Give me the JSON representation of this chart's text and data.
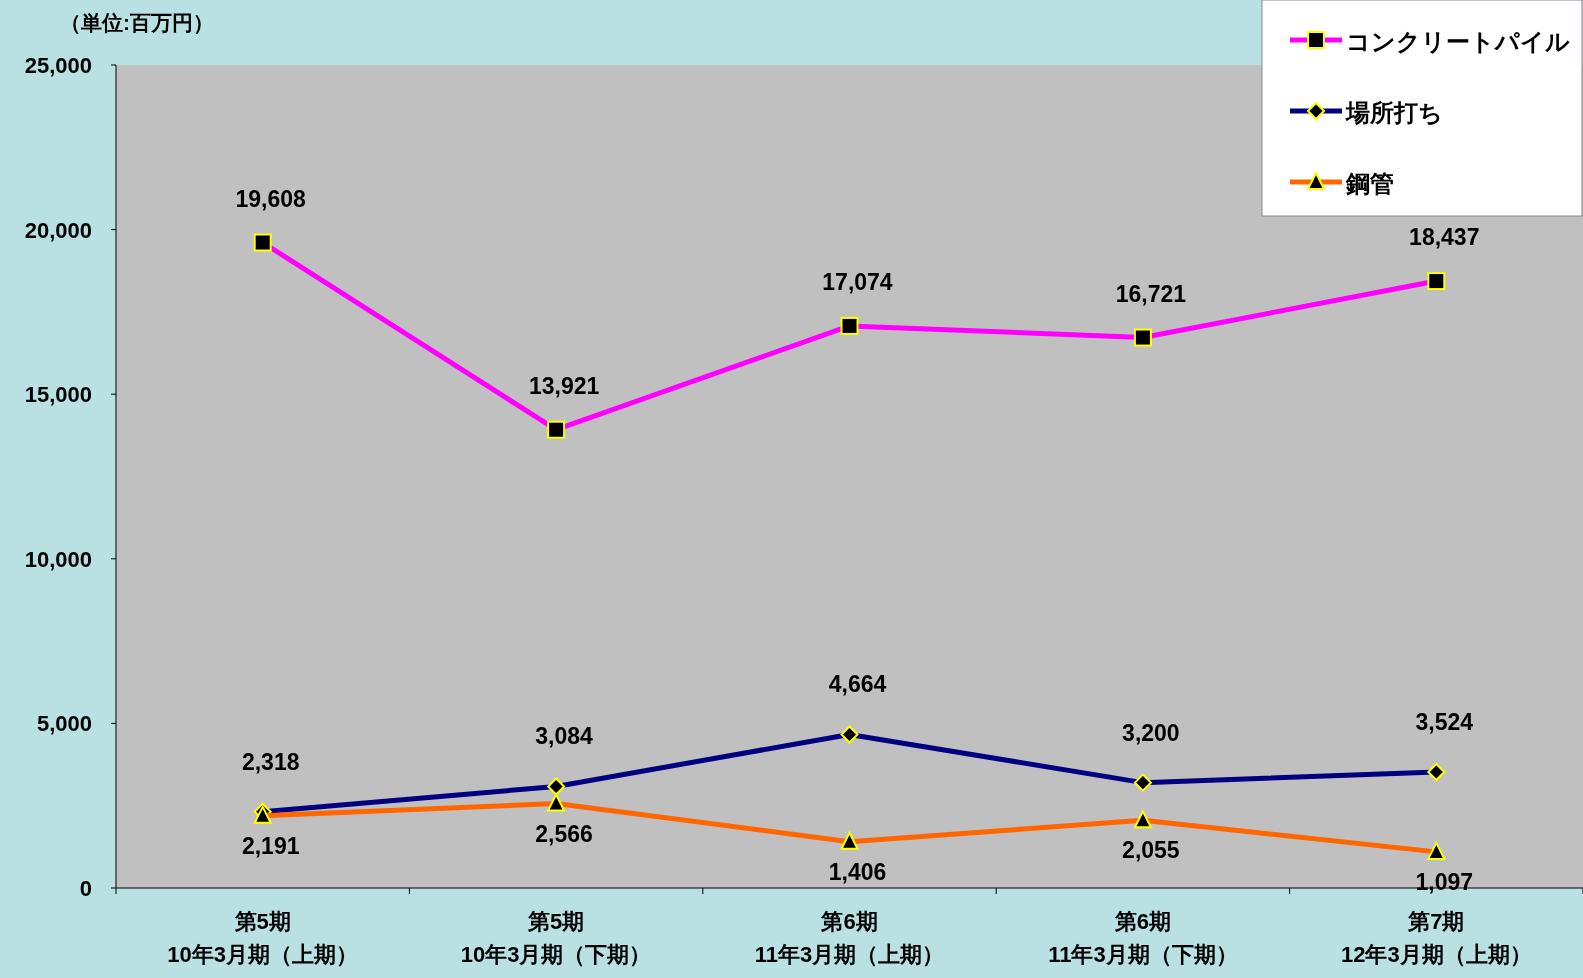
{
  "chart_data": {
    "type": "line",
    "categories": [
      "第5期\n10年3月期（上期）",
      "第5期\n10年3月期（下期）",
      "第6期\n11年3月期（上期）",
      "第6期\n11年3月期（下期）",
      "第7期\n12年3月期（上期）"
    ],
    "ylim": [
      0,
      25000
    ],
    "yticks": [
      {
        "value": 0,
        "label": "0"
      },
      {
        "value": 5000,
        "label": "5,000"
      },
      {
        "value": 10000,
        "label": "10,000"
      },
      {
        "value": 15000,
        "label": "15,000"
      },
      {
        "value": 20000,
        "label": "20,000"
      },
      {
        "value": 25000,
        "label": "25,000"
      }
    ],
    "annotations": [
      "（単位:百万円）"
    ],
    "legend": "top right",
    "grid": false,
    "series": [
      {
        "name": "コンクリートパイル",
        "color": "#ff00ff",
        "marker": "square",
        "values": [
          19608,
          13921,
          17074,
          16721,
          18437
        ],
        "value_labels": [
          "19,608",
          "13,921",
          "17,074",
          "16,721",
          "18,437"
        ]
      },
      {
        "name": "場所打ち",
        "color": "#000080",
        "marker": "diamond",
        "values": [
          2318,
          3084,
          4664,
          3200,
          3524
        ],
        "value_labels": [
          "2,318",
          "3,084",
          "4,664",
          "3,200",
          "3,524"
        ]
      },
      {
        "name": "鋼管",
        "color": "#ff6600",
        "marker": "triangle",
        "values": [
          2191,
          2566,
          1406,
          2055,
          1097
        ],
        "value_labels": [
          "2,191",
          "2,566",
          "1,406",
          "2,055",
          "1,097"
        ]
      }
    ]
  }
}
